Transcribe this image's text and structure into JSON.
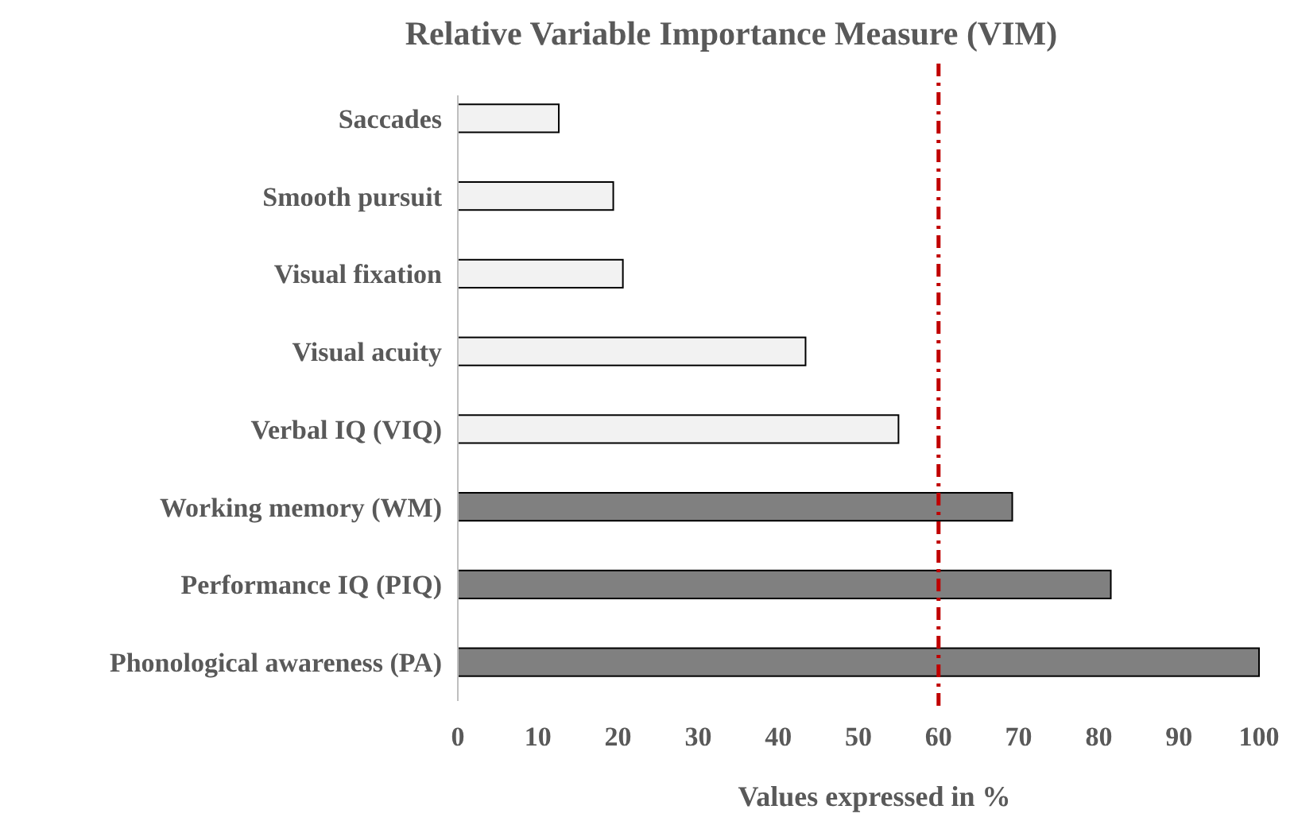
{
  "chart_data": {
    "type": "bar",
    "orientation": "horizontal",
    "title": "Relative Variable Importance Measure (VIM)",
    "xlabel": "Values expressed in %",
    "categories": [
      "Saccades",
      "Smooth pursuit",
      "Visual fixation",
      "Visual acuity",
      "Verbal IQ (VIQ)",
      "Working memory (WM)",
      "Performance IQ (PIQ)",
      "Phonological awareness (PA)"
    ],
    "values": [
      12.6,
      19.4,
      20.6,
      43.4,
      55,
      69.2,
      81.5,
      100
    ],
    "colors": [
      "#f2f2f2",
      "#f2f2f2",
      "#f2f2f2",
      "#f2f2f2",
      "#f2f2f2",
      "#808080",
      "#808080",
      "#808080"
    ],
    "xlim": [
      0,
      100
    ],
    "xticks": [
      0,
      10,
      20,
      30,
      40,
      50,
      60,
      70,
      80,
      90,
      100
    ],
    "grid": false,
    "ref_lines": [
      {
        "axis": "x",
        "value": 60,
        "color": "#c00000",
        "line_style": "dashed"
      }
    ]
  }
}
